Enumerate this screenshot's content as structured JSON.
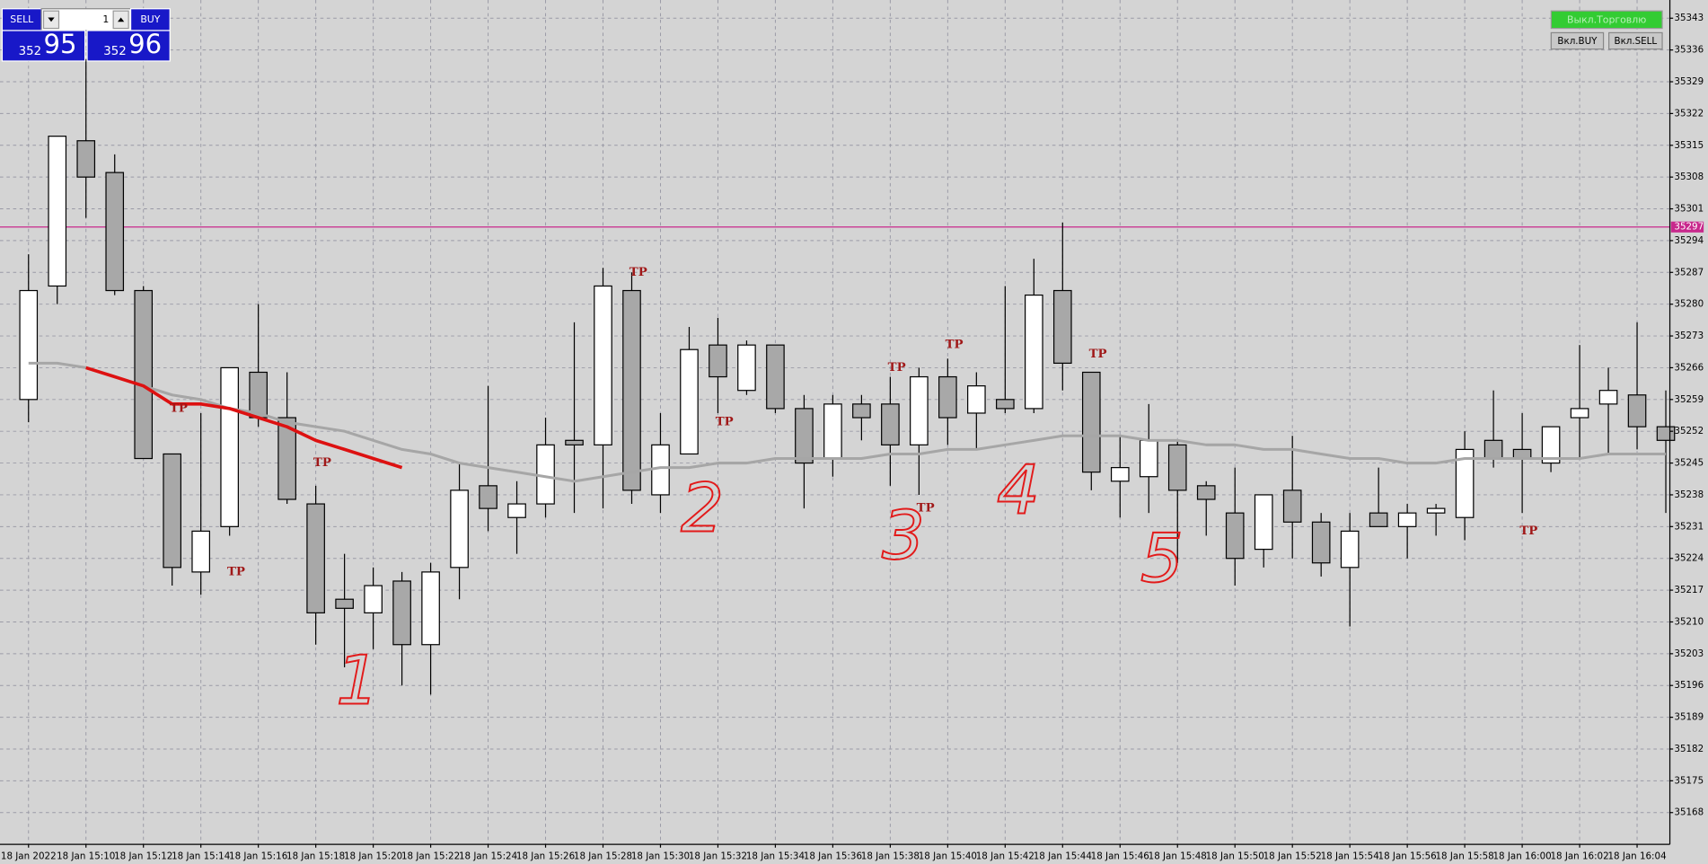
{
  "chart_data": {
    "type": "candlestick",
    "categories": [
      "18 Jan 2022",
      null,
      "18 Jan 15:10",
      null,
      "18 Jan 15:12",
      null,
      "18 Jan 15:14",
      null,
      "18 Jan 15:16",
      null,
      "18 Jan 15:18",
      null,
      "18 Jan 15:20",
      null,
      "18 Jan 15:22",
      null,
      "18 Jan 15:24",
      null,
      "18 Jan 15:26",
      null,
      "18 Jan 15:28",
      null,
      "18 Jan 15:30",
      null,
      "18 Jan 15:32",
      null,
      "18 Jan 15:34",
      null,
      "18 Jan 15:36",
      null,
      "18 Jan 15:38",
      null,
      "18 Jan 15:40",
      null,
      "18 Jan 15:42",
      null,
      "18 Jan 15:44",
      null,
      "18 Jan 15:46",
      null,
      "18 Jan 15:48",
      null,
      "18 Jan 15:50",
      null,
      "18 Jan 15:52",
      null,
      "18 Jan 15:54",
      null,
      "18 Jan 15:56",
      null,
      "18 Jan 15:58",
      null,
      "18 Jan 16:00",
      null,
      "18 Jan 16:02",
      null,
      "18 Jan 16:04",
      null
    ],
    "open": [
      35259,
      35284,
      35316,
      35309,
      35283,
      35247,
      35221,
      35231,
      35265,
      35255,
      35236,
      35215,
      35212,
      35219,
      35205,
      35222,
      35240,
      35233,
      35236,
      35250,
      35249,
      35283,
      35238,
      35247,
      35271,
      35261,
      35271,
      35257,
      35246,
      35258,
      35258,
      35249,
      35264,
      35256,
      35259,
      35257,
      35283,
      35265,
      35241,
      35242,
      35249,
      35240,
      35234,
      35226,
      35239,
      35232,
      35222,
      35234,
      35231,
      35234,
      35233,
      35250,
      35248,
      35245,
      35255,
      35258,
      35260,
      35253
    ],
    "high": [
      35291,
      35317,
      35334,
      35313,
      35284,
      35247,
      35256,
      35266,
      35280,
      35265,
      35240,
      35225,
      35222,
      35221,
      35223,
      35245,
      35262,
      35241,
      35255,
      35276,
      35288,
      35287,
      35256,
      35275,
      35277,
      35272,
      35271,
      35260,
      35260,
      35260,
      35264,
      35266,
      35268,
      35265,
      35284,
      35290,
      35298,
      35265,
      35251,
      35258,
      35250,
      35241,
      35244,
      35238,
      35251,
      35234,
      35234,
      35244,
      35236,
      35236,
      35252,
      35261,
      35256,
      35253,
      35271,
      35266,
      35276,
      35261
    ],
    "low": [
      35254,
      35280,
      35299,
      35282,
      35246,
      35218,
      35216,
      35229,
      35253,
      35236,
      35205,
      35200,
      35204,
      35196,
      35194,
      35215,
      35230,
      35225,
      35233,
      35234,
      35235,
      35236,
      35234,
      35247,
      35256,
      35260,
      35256,
      35235,
      35242,
      35250,
      35240,
      35238,
      35249,
      35248,
      35256,
      35256,
      35261,
      35239,
      35233,
      35234,
      35223,
      35229,
      35218,
      35222,
      35224,
      35220,
      35209,
      35231,
      35224,
      35229,
      35228,
      35244,
      35234,
      35243,
      35246,
      35247,
      35248,
      35234
    ],
    "close": [
      35283,
      35317,
      35308,
      35283,
      35246,
      35222,
      35230,
      35266,
      35255,
      35237,
      35212,
      35213,
      35218,
      35205,
      35221,
      35239,
      35235,
      35236,
      35249,
      35249,
      35284,
      35239,
      35249,
      35270,
      35264,
      35271,
      35257,
      35245,
      35258,
      35255,
      35249,
      35264,
      35255,
      35262,
      35257,
      35282,
      35267,
      35243,
      35244,
      35250,
      35239,
      35237,
      35224,
      35238,
      35232,
      35223,
      35230,
      35231,
      35234,
      35235,
      35248,
      35246,
      35246,
      35253,
      35257,
      35261,
      35253,
      35250
    ],
    "up_color": "#ffffff",
    "down_color": "#a8a8a8",
    "lines": [
      {
        "color": "#a6a6a6",
        "values": [
          35267,
          35267,
          35266,
          35264,
          35262,
          35260,
          35259,
          35257,
          35256,
          35254,
          35253,
          35252,
          35250,
          35248,
          35247,
          35245,
          35244,
          35243,
          35242,
          35241,
          35242,
          35243,
          35244,
          35244,
          35245,
          35245,
          35246,
          35246,
          35246,
          35246,
          35247,
          35247,
          35248,
          35248,
          35249,
          35250,
          35251,
          35251,
          35251,
          35250,
          35250,
          35249,
          35249,
          35248,
          35248,
          35247,
          35246,
          35246,
          35245,
          35245,
          35246,
          35246,
          35246,
          35246,
          35246,
          35247,
          35247,
          35247
        ]
      },
      {
        "color": "#dd1111",
        "values": [
          null,
          null,
          35266,
          35264,
          35262,
          35258,
          35258,
          35257,
          35255,
          35253,
          35250,
          35248,
          35246,
          35244,
          null,
          null,
          null,
          null,
          null,
          null,
          null,
          null,
          null,
          null,
          null,
          null,
          null,
          null,
          null,
          null,
          null,
          null,
          null,
          null,
          null,
          null,
          null,
          null,
          null,
          null,
          null,
          null,
          null,
          null,
          null,
          null,
          null,
          null,
          null,
          null,
          null,
          null,
          null,
          null,
          null,
          null,
          null,
          null
        ]
      }
    ],
    "price_line": {
      "value": 35297,
      "color": "#c8288c"
    },
    "annotations": [
      {
        "text": "TP",
        "candle": 5,
        "y": 35257
      },
      {
        "text": "TP",
        "candle": 7,
        "y": 35221
      },
      {
        "text": "TP",
        "candle": 10,
        "y": 35245
      },
      {
        "text": "TP",
        "candle": 21,
        "y": 35287
      },
      {
        "text": "TP",
        "candle": 24,
        "y": 35254
      },
      {
        "text": "TP",
        "candle": 30,
        "y": 35266
      },
      {
        "text": "TP",
        "candle": 32,
        "y": 35271
      },
      {
        "text": "TP",
        "candle": 31,
        "y": 35235
      },
      {
        "text": "TP",
        "candle": 37,
        "y": 35269
      },
      {
        "text": "TP",
        "candle": 52,
        "y": 35230
      }
    ],
    "handwritten": [
      {
        "text": "1",
        "candle": 11,
        "y": 35196
      },
      {
        "text": "2",
        "candle": 23,
        "y": 35234
      },
      {
        "text": "3",
        "candle": 30,
        "y": 35228
      },
      {
        "text": "4",
        "candle": 34,
        "y": 35238
      },
      {
        "text": "5",
        "candle": 39,
        "y": 35223
      }
    ],
    "ylim": [
      35161,
      35347
    ],
    "yticks": [
      35168,
      35175,
      35182,
      35189,
      35196,
      35203,
      35210,
      35217,
      35224,
      35231,
      35238,
      35245,
      35252,
      35259,
      35266,
      35273,
      35280,
      35287,
      35294,
      35301,
      35308,
      35315,
      35322,
      35329,
      35336,
      35343
    ],
    "grid": true
  },
  "trade_panel": {
    "sell": "SELL",
    "lot": "1",
    "buy": "BUY",
    "bid_prefix": "352",
    "bid": "95",
    "ask_prefix": "352",
    "ask": "96"
  },
  "buttons": [
    {
      "label": "Выкл.Торговлю"
    },
    {
      "label": "Вкл.BUY"
    },
    {
      "label": "Вкл.SELL"
    }
  ]
}
